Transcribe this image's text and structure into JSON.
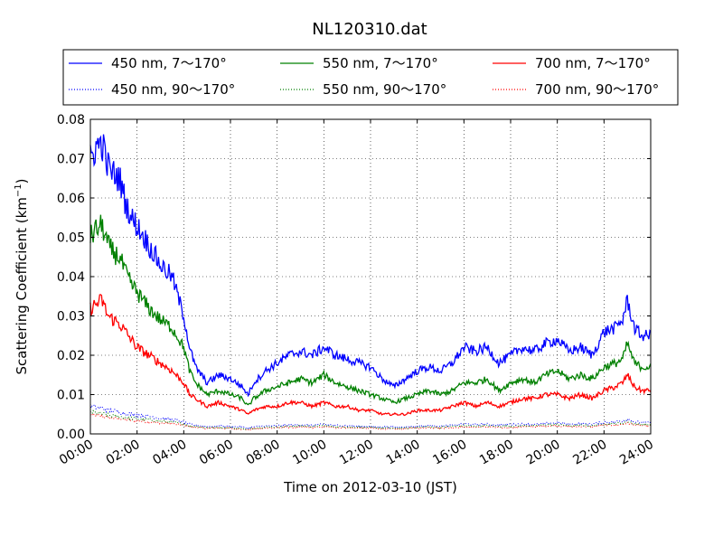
{
  "chart_data": {
    "type": "line",
    "title": "NL120310.dat",
    "xlabel": "Time on 2012-03-10 (JST)",
    "ylabel_main": "Scattering Coefficient (km",
    "ylabel_exp": "−1",
    "ylabel_close": ")",
    "xlim_hours": [
      0,
      24
    ],
    "ylim": [
      0,
      0.08
    ],
    "grid": true,
    "legend_position": "top",
    "x_ticks": [
      {
        "hour": 0,
        "label": "00:00"
      },
      {
        "hour": 2,
        "label": "02:00"
      },
      {
        "hour": 4,
        "label": "04:00"
      },
      {
        "hour": 6,
        "label": "06:00"
      },
      {
        "hour": 8,
        "label": "08:00"
      },
      {
        "hour": 10,
        "label": "10:00"
      },
      {
        "hour": 12,
        "label": "12:00"
      },
      {
        "hour": 14,
        "label": "14:00"
      },
      {
        "hour": 16,
        "label": "16:00"
      },
      {
        "hour": 18,
        "label": "18:00"
      },
      {
        "hour": 20,
        "label": "20:00"
      },
      {
        "hour": 22,
        "label": "22:00"
      },
      {
        "hour": 24,
        "label": "24:00"
      }
    ],
    "y_ticks": [
      {
        "value": 0.0,
        "label": "0.00"
      },
      {
        "value": 0.01,
        "label": "0.01"
      },
      {
        "value": 0.02,
        "label": "0.02"
      },
      {
        "value": 0.03,
        "label": "0.03"
      },
      {
        "value": 0.04,
        "label": "0.04"
      },
      {
        "value": 0.05,
        "label": "0.05"
      },
      {
        "value": 0.06,
        "label": "0.06"
      },
      {
        "value": 0.07,
        "label": "0.07"
      },
      {
        "value": 0.08,
        "label": "0.08"
      }
    ],
    "x": [
      0,
      0.25,
      0.5,
      0.75,
      1,
      1.25,
      1.5,
      1.75,
      2,
      2.5,
      3,
      3.5,
      4,
      4.25,
      4.5,
      5,
      5.5,
      6,
      6.5,
      6.75,
      7,
      7.5,
      8,
      8.5,
      9,
      9.5,
      10,
      10.5,
      11,
      11.5,
      12,
      12.5,
      13,
      13.5,
      14,
      14.5,
      15,
      15.5,
      16,
      16.5,
      17,
      17.5,
      18,
      18.5,
      19,
      19.5,
      20,
      20.5,
      21,
      21.5,
      22,
      22.5,
      22.8,
      23,
      23.3,
      23.6,
      24
    ],
    "series": [
      {
        "name": "450 nm, 7～170°",
        "color": "#0000ff",
        "style": "solid",
        "values": [
          0.07,
          0.073,
          0.074,
          0.068,
          0.066,
          0.065,
          0.059,
          0.055,
          0.053,
          0.048,
          0.043,
          0.04,
          0.03,
          0.022,
          0.017,
          0.013,
          0.015,
          0.014,
          0.012,
          0.01,
          0.013,
          0.016,
          0.018,
          0.02,
          0.021,
          0.02,
          0.022,
          0.02,
          0.019,
          0.018,
          0.017,
          0.014,
          0.012,
          0.014,
          0.016,
          0.017,
          0.016,
          0.018,
          0.022,
          0.021,
          0.022,
          0.018,
          0.02,
          0.022,
          0.021,
          0.023,
          0.024,
          0.021,
          0.022,
          0.02,
          0.026,
          0.027,
          0.029,
          0.034,
          0.027,
          0.025,
          0.025
        ]
      },
      {
        "name": "550 nm, 7～170°",
        "color": "#008000",
        "style": "solid",
        "values": [
          0.05,
          0.052,
          0.053,
          0.048,
          0.046,
          0.045,
          0.041,
          0.038,
          0.036,
          0.032,
          0.029,
          0.027,
          0.022,
          0.016,
          0.013,
          0.01,
          0.011,
          0.01,
          0.009,
          0.007,
          0.009,
          0.011,
          0.012,
          0.013,
          0.014,
          0.013,
          0.015,
          0.013,
          0.012,
          0.011,
          0.01,
          0.009,
          0.008,
          0.009,
          0.01,
          0.011,
          0.01,
          0.011,
          0.013,
          0.013,
          0.014,
          0.011,
          0.013,
          0.014,
          0.013,
          0.015,
          0.016,
          0.014,
          0.015,
          0.014,
          0.017,
          0.018,
          0.019,
          0.023,
          0.018,
          0.017,
          0.017
        ]
      },
      {
        "name": "700 nm, 7～170°",
        "color": "#ff0000",
        "style": "solid",
        "values": [
          0.032,
          0.033,
          0.034,
          0.03,
          0.029,
          0.028,
          0.026,
          0.024,
          0.022,
          0.02,
          0.018,
          0.016,
          0.013,
          0.01,
          0.009,
          0.007,
          0.008,
          0.007,
          0.006,
          0.005,
          0.006,
          0.007,
          0.007,
          0.008,
          0.008,
          0.007,
          0.008,
          0.007,
          0.007,
          0.006,
          0.006,
          0.005,
          0.005,
          0.005,
          0.006,
          0.006,
          0.006,
          0.007,
          0.008,
          0.007,
          0.008,
          0.007,
          0.008,
          0.009,
          0.009,
          0.01,
          0.01,
          0.009,
          0.01,
          0.009,
          0.011,
          0.012,
          0.013,
          0.015,
          0.012,
          0.011,
          0.011
        ]
      },
      {
        "name": "450 nm, 90～170°",
        "color": "#0000ff",
        "style": "dotted",
        "values": [
          0.007,
          0.0068,
          0.0065,
          0.006,
          0.0058,
          0.0055,
          0.0052,
          0.005,
          0.0048,
          0.0045,
          0.004,
          0.0037,
          0.003,
          0.0025,
          0.0022,
          0.0019,
          0.002,
          0.0019,
          0.0017,
          0.0015,
          0.0018,
          0.002,
          0.0021,
          0.0022,
          0.0023,
          0.0022,
          0.0024,
          0.0022,
          0.0021,
          0.002,
          0.0019,
          0.0018,
          0.0017,
          0.0018,
          0.002,
          0.0021,
          0.002,
          0.0022,
          0.0025,
          0.0024,
          0.0025,
          0.0022,
          0.0024,
          0.0025,
          0.0024,
          0.0027,
          0.0028,
          0.0025,
          0.0026,
          0.0025,
          0.003,
          0.0031,
          0.0033,
          0.0038,
          0.0031,
          0.0029,
          0.0029
        ]
      },
      {
        "name": "550 nm, 90～170°",
        "color": "#008000",
        "style": "dotted",
        "values": [
          0.0055,
          0.0053,
          0.0051,
          0.0048,
          0.0046,
          0.0044,
          0.0042,
          0.004,
          0.0038,
          0.0036,
          0.0032,
          0.003,
          0.0025,
          0.0021,
          0.0019,
          0.0016,
          0.0017,
          0.0016,
          0.0014,
          0.0012,
          0.0015,
          0.0017,
          0.0018,
          0.0019,
          0.002,
          0.0019,
          0.0021,
          0.0019,
          0.0018,
          0.0017,
          0.0016,
          0.0015,
          0.0014,
          0.0015,
          0.0017,
          0.0018,
          0.0017,
          0.0019,
          0.0021,
          0.002,
          0.0021,
          0.0019,
          0.002,
          0.0021,
          0.002,
          0.0023,
          0.0024,
          0.0021,
          0.0022,
          0.0021,
          0.0025,
          0.0026,
          0.0028,
          0.0032,
          0.0026,
          0.0024,
          0.0024
        ]
      },
      {
        "name": "700 nm, 90～170°",
        "color": "#ff0000",
        "style": "dotted",
        "values": [
          0.0048,
          0.0047,
          0.0045,
          0.0042,
          0.004,
          0.0039,
          0.0037,
          0.0035,
          0.0033,
          0.0031,
          0.0028,
          0.0026,
          0.0022,
          0.0019,
          0.0017,
          0.0014,
          0.0015,
          0.0014,
          0.0012,
          0.001,
          0.0013,
          0.0015,
          0.0016,
          0.0017,
          0.0017,
          0.0016,
          0.0018,
          0.0016,
          0.0016,
          0.0015,
          0.0014,
          0.0013,
          0.0012,
          0.0013,
          0.0015,
          0.0016,
          0.0015,
          0.0016,
          0.0018,
          0.0017,
          0.0018,
          0.0016,
          0.0017,
          0.0018,
          0.0018,
          0.002,
          0.0021,
          0.0018,
          0.0019,
          0.0018,
          0.0022,
          0.0023,
          0.0024,
          0.0028,
          0.0023,
          0.0021,
          0.0021
        ]
      }
    ],
    "legend_order": [
      0,
      1,
      2,
      3,
      4,
      5
    ]
  }
}
